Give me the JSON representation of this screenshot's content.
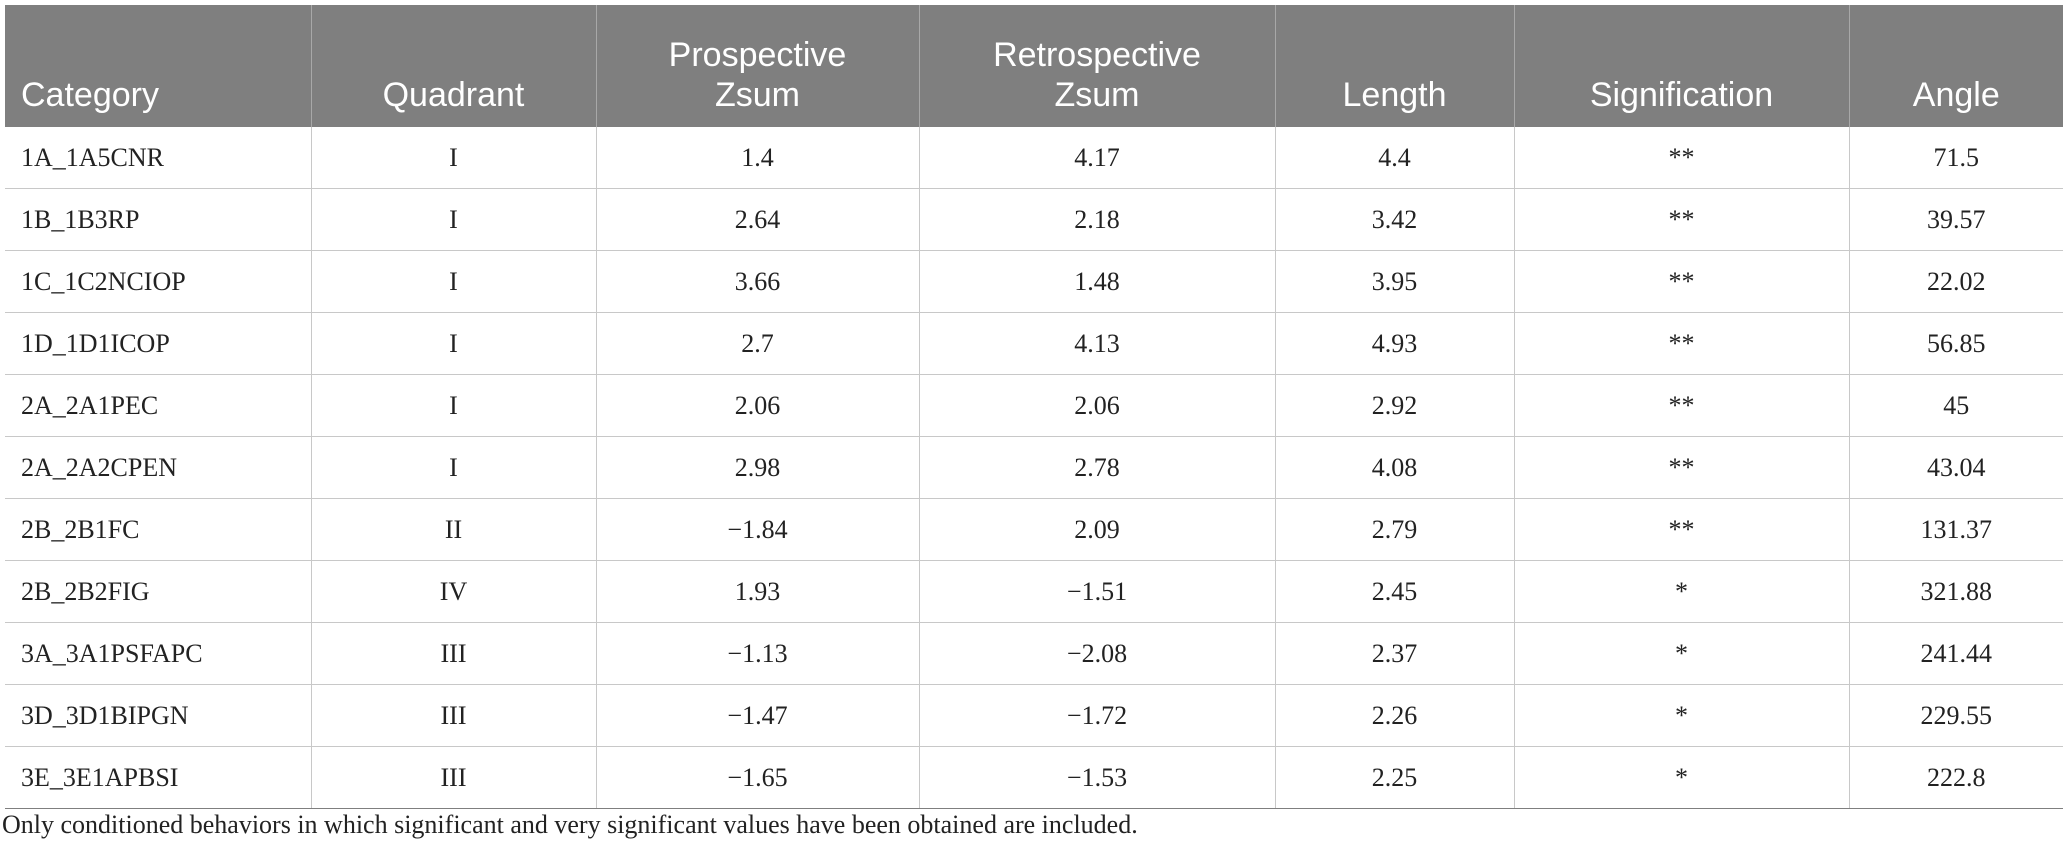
{
  "table": {
    "headers": [
      [
        "Category"
      ],
      [
        "Quadrant"
      ],
      [
        "Prospective",
        "Zsum"
      ],
      [
        "Retrospective",
        "Zsum"
      ],
      [
        "Length"
      ],
      [
        "Signification"
      ],
      [
        "Angle"
      ]
    ],
    "rows": [
      [
        "1A_1A5CNR",
        "I",
        "1.4",
        "4.17",
        "4.4",
        "**",
        "71.5"
      ],
      [
        "1B_1B3RP",
        "I",
        "2.64",
        "2.18",
        "3.42",
        "**",
        "39.57"
      ],
      [
        "1C_1C2NCIOP",
        "I",
        "3.66",
        "1.48",
        "3.95",
        "**",
        "22.02"
      ],
      [
        "1D_1D1ICOP",
        "I",
        "2.7",
        "4.13",
        "4.93",
        "**",
        "56.85"
      ],
      [
        "2A_2A1PEC",
        "I",
        "2.06",
        "2.06",
        "2.92",
        "**",
        "45"
      ],
      [
        "2A_2A2CPEN",
        "I",
        "2.98",
        "2.78",
        "4.08",
        "**",
        "43.04"
      ],
      [
        "2B_2B1FC",
        "II",
        "−1.84",
        "2.09",
        "2.79",
        "**",
        "131.37"
      ],
      [
        "2B_2B2FIG",
        "IV",
        "1.93",
        "−1.51",
        "2.45",
        "*",
        "321.88"
      ],
      [
        "3A_3A1PSFAPC",
        "III",
        "−1.13",
        "−2.08",
        "2.37",
        "*",
        "241.44"
      ],
      [
        "3D_3D1BIPGN",
        "III",
        "−1.47",
        "−1.72",
        "2.26",
        "*",
        "229.55"
      ],
      [
        "3E_3E1APBSI",
        "III",
        "−1.65",
        "−1.53",
        "2.25",
        "*",
        "222.8"
      ]
    ]
  },
  "footnote": "Only conditioned behaviors in which significant and very significant values have been obtained are included.",
  "colors": {
    "header_background": "#7f7f7f",
    "header_text": "#ffffff",
    "grid_line": "#c8c8c8"
  }
}
